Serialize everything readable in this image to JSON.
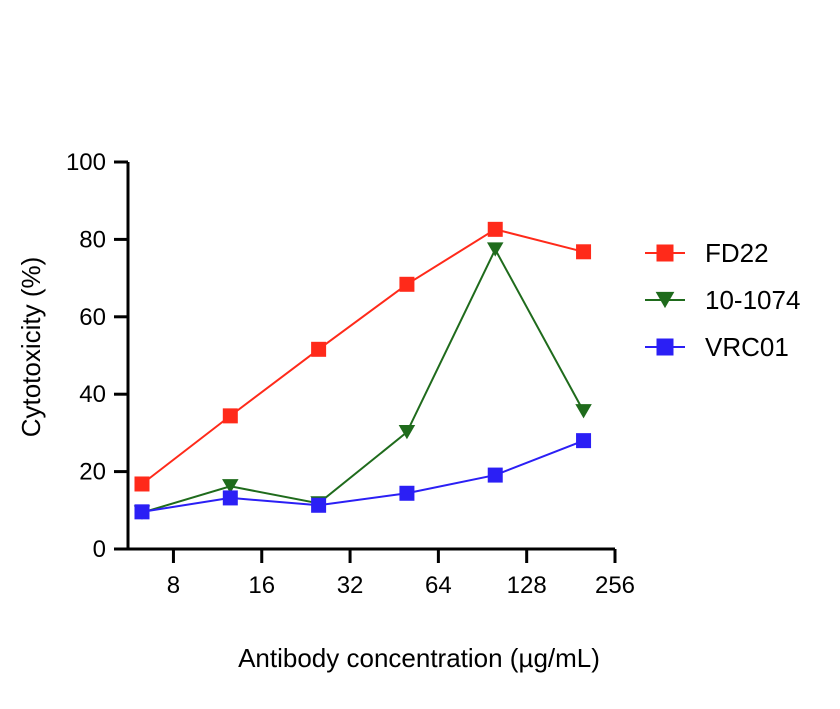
{
  "chart_data": {
    "type": "line",
    "title": "",
    "xlabel": "Antibody concentration (µg/mL)",
    "ylabel": "Cytotoxicity (%)",
    "x_scale": "log2",
    "xlim": [
      5.6,
      256
    ],
    "ylim": [
      0,
      100
    ],
    "x_ticks": [
      8,
      16,
      32,
      64,
      128,
      256
    ],
    "x_tick_labels": [
      "8",
      "16",
      "32",
      "64",
      "128",
      "256"
    ],
    "y_ticks": [
      0,
      20,
      40,
      60,
      80,
      100
    ],
    "y_tick_labels": [
      "0",
      "20",
      "40",
      "60",
      "80",
      "100"
    ],
    "grid": false,
    "legend_position": "right",
    "x": [
      6.25,
      12.5,
      25,
      50,
      100,
      200
    ],
    "series": [
      {
        "name": "FD22",
        "color": "#ff2a1a",
        "marker": "square",
        "values": [
          16.8,
          34.4,
          51.6,
          68.4,
          82.6,
          76.8
        ]
      },
      {
        "name": "10-1074",
        "color": "#1f6b1c",
        "marker": "triangle-down",
        "values": [
          9.4,
          16.2,
          11.8,
          30.2,
          77.4,
          35.6
        ]
      },
      {
        "name": "VRC01",
        "color": "#2b1ff5",
        "marker": "square",
        "values": [
          9.6,
          13.2,
          11.3,
          14.4,
          19.1,
          28.0
        ]
      }
    ]
  }
}
